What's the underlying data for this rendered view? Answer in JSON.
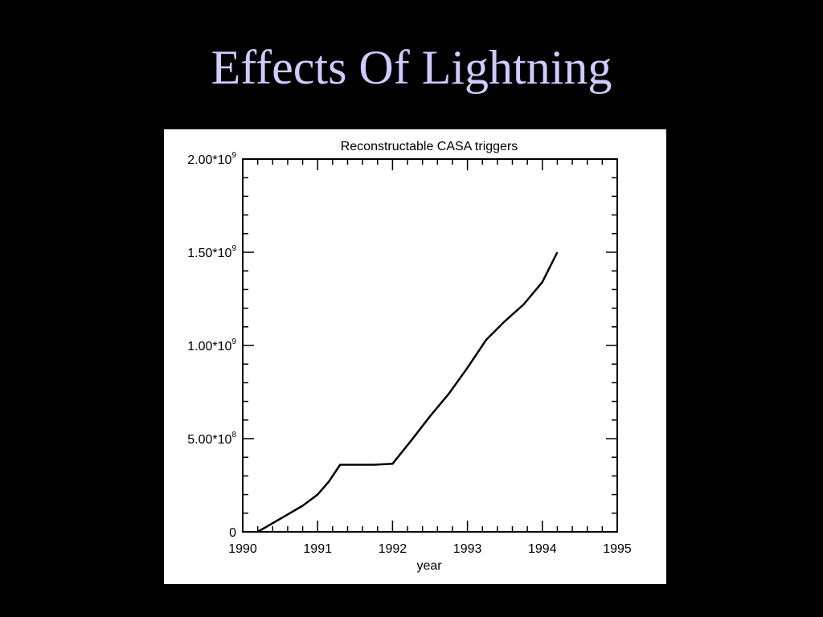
{
  "slide": {
    "title": "Effects Of Lightning",
    "background_color": "#000000",
    "title_color": "#ccccff"
  },
  "chart_data": {
    "type": "line",
    "title": "Reconstructable CASA triggers",
    "xlabel": "year",
    "ylabel": "",
    "xlim": [
      1990,
      1995
    ],
    "ylim": [
      0,
      2000000000
    ],
    "x_ticks": [
      1990,
      1991,
      1992,
      1993,
      1994,
      1995
    ],
    "x_tick_labels": [
      "1990",
      "1991",
      "1992",
      "1993",
      "1994",
      "1995"
    ],
    "y_ticks": [
      0,
      500000000,
      1000000000,
      1500000000,
      2000000000
    ],
    "y_tick_labels": [
      "0",
      "5.00*10",
      "1.00*10",
      "1.50*10",
      "2.00*10"
    ],
    "y_tick_exponents": [
      "",
      "8",
      "9",
      "9",
      "9"
    ],
    "grid": false,
    "line_color": "#000000",
    "series": [
      {
        "x": [
          1990.2,
          1990.5,
          1990.8,
          1991.0,
          1991.15,
          1991.3,
          1991.5,
          1991.75,
          1992.0,
          1992.25,
          1992.5,
          1992.75,
          1993.0,
          1993.25,
          1993.5,
          1993.75,
          1994.0,
          1994.2
        ],
        "y": [
          0,
          70000000,
          140000000,
          200000000,
          270000000,
          360000000,
          360000000,
          360000000,
          365000000,
          490000000,
          620000000,
          740000000,
          880000000,
          1030000000,
          1130000000,
          1220000000,
          1340000000,
          1500000000
        ]
      }
    ]
  }
}
